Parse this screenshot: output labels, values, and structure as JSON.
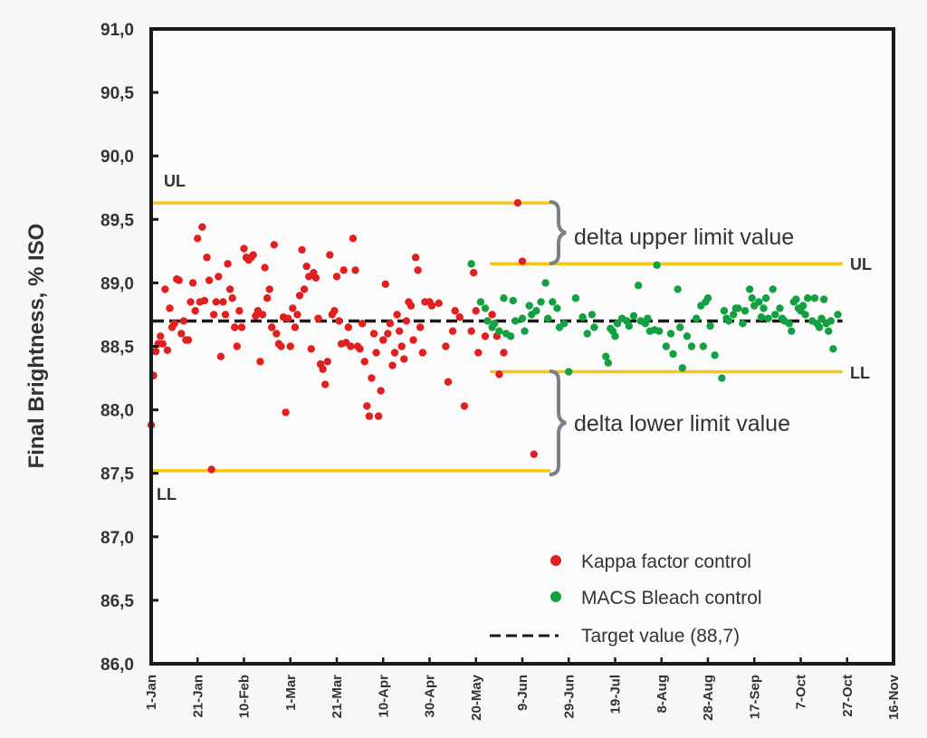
{
  "chart_data": {
    "type": "scatter",
    "title": "",
    "ylabel": "Final Brightness, % ISO",
    "xlabel": "",
    "ylim": [
      86.0,
      91.0
    ],
    "xlim_days": [
      0,
      320
    ],
    "y_ticks": [
      "86,0",
      "86,5",
      "87,0",
      "87,5",
      "88,0",
      "88,5",
      "89,0",
      "89,5",
      "90,0",
      "90,5",
      "91,0"
    ],
    "y_tick_values": [
      86.0,
      86.5,
      87.0,
      87.5,
      88.0,
      88.5,
      89.0,
      89.5,
      90.0,
      90.5,
      91.0
    ],
    "x_ticks": [
      "1-Jan",
      "21-Jan",
      "10-Feb",
      "1-Mar",
      "21-Mar",
      "10-Apr",
      "30-Apr",
      "20-May",
      "9-Jun",
      "29-Jun",
      "19-Jul",
      "8-Aug",
      "28-Aug",
      "17-Sep",
      "7-Oct",
      "27-Oct",
      "16-Nov"
    ],
    "x_tick_days": [
      0,
      20,
      40,
      60,
      80,
      100,
      120,
      140,
      160,
      180,
      200,
      220,
      240,
      260,
      280,
      300,
      320
    ],
    "grid": false,
    "legend_position": "bottom-right",
    "target": {
      "label": "Target value  (88,7)",
      "value": 88.7,
      "day_range": [
        0,
        298
      ]
    },
    "limits": [
      {
        "name": "UL",
        "series": "Kappa factor control",
        "value": 89.63,
        "day_range": [
          0,
          172
        ],
        "label_side": "left"
      },
      {
        "name": "LL",
        "series": "Kappa factor control",
        "value": 87.52,
        "day_range": [
          0,
          172
        ],
        "label_side": "left"
      },
      {
        "name": "UL",
        "series": "MACS Bleach control",
        "value": 89.15,
        "day_range": [
          146,
          298
        ],
        "label_side": "right"
      },
      {
        "name": "LL",
        "series": "MACS Bleach control",
        "value": 88.3,
        "day_range": [
          146,
          298
        ],
        "label_side": "right"
      }
    ],
    "annotations": [
      {
        "text": "delta upper limit value",
        "between": [
          89.15,
          89.63
        ]
      },
      {
        "text": "delta lower limit value",
        "between": [
          87.52,
          88.3
        ]
      }
    ],
    "series": [
      {
        "name": "Kappa factor control",
        "color": "#e02020",
        "points": [
          [
            0,
            87.88
          ],
          [
            1,
            88.27
          ],
          [
            2,
            88.46
          ],
          [
            3,
            88.52
          ],
          [
            4,
            88.58
          ],
          [
            5,
            88.52
          ],
          [
            6,
            88.95
          ],
          [
            7,
            88.47
          ],
          [
            8,
            88.8
          ],
          [
            9,
            88.65
          ],
          [
            10,
            88.68
          ],
          [
            11,
            89.03
          ],
          [
            12,
            89.02
          ],
          [
            13,
            88.6
          ],
          [
            14,
            88.7
          ],
          [
            15,
            88.55
          ],
          [
            16,
            88.55
          ],
          [
            17,
            88.85
          ],
          [
            18,
            89.0
          ],
          [
            19,
            88.78
          ],
          [
            20,
            89.35
          ],
          [
            21,
            88.85
          ],
          [
            22,
            89.44
          ],
          [
            23,
            88.86
          ],
          [
            24,
            89.2
          ],
          [
            25,
            89.02
          ],
          [
            26,
            87.53
          ],
          [
            27,
            88.75
          ],
          [
            28,
            88.85
          ],
          [
            29,
            89.05
          ],
          [
            30,
            88.42
          ],
          [
            31,
            88.85
          ],
          [
            32,
            88.75
          ],
          [
            33,
            89.15
          ],
          [
            34,
            88.95
          ],
          [
            35,
            88.88
          ],
          [
            36,
            88.65
          ],
          [
            37,
            88.5
          ],
          [
            38,
            88.78
          ],
          [
            39,
            88.65
          ],
          [
            40,
            89.27
          ],
          [
            41,
            89.2
          ],
          [
            42,
            89.18
          ],
          [
            43,
            89.2
          ],
          [
            44,
            89.22
          ],
          [
            45,
            88.74
          ],
          [
            46,
            88.78
          ],
          [
            47,
            88.38
          ],
          [
            48,
            88.75
          ],
          [
            49,
            89.12
          ],
          [
            50,
            88.88
          ],
          [
            51,
            88.95
          ],
          [
            52,
            88.65
          ],
          [
            53,
            89.3
          ],
          [
            54,
            88.6
          ],
          [
            55,
            88.52
          ],
          [
            56,
            88.5
          ],
          [
            57,
            88.73
          ],
          [
            58,
            87.98
          ],
          [
            59,
            88.72
          ],
          [
            60,
            88.5
          ],
          [
            61,
            88.8
          ],
          [
            62,
            88.65
          ],
          [
            63,
            88.75
          ],
          [
            64,
            88.9
          ],
          [
            65,
            89.26
          ],
          [
            66,
            88.95
          ],
          [
            67,
            89.13
          ],
          [
            68,
            89.05
          ],
          [
            69,
            88.48
          ],
          [
            70,
            89.08
          ],
          [
            71,
            89.04
          ],
          [
            72,
            88.72
          ],
          [
            73,
            88.36
          ],
          [
            74,
            88.32
          ],
          [
            75,
            88.2
          ],
          [
            76,
            88.38
          ],
          [
            77,
            89.22
          ],
          [
            78,
            88.75
          ],
          [
            79,
            88.78
          ],
          [
            80,
            89.05
          ],
          [
            81,
            88.7
          ],
          [
            82,
            88.52
          ],
          [
            83,
            89.1
          ],
          [
            84,
            88.53
          ],
          [
            85,
            88.65
          ],
          [
            86,
            88.5
          ],
          [
            87,
            89.35
          ],
          [
            88,
            89.1
          ],
          [
            89,
            88.5
          ],
          [
            90,
            88.48
          ],
          [
            91,
            88.68
          ],
          [
            92,
            88.38
          ],
          [
            93,
            88.03
          ],
          [
            94,
            87.95
          ],
          [
            95,
            88.25
          ],
          [
            96,
            88.6
          ],
          [
            97,
            88.45
          ],
          [
            98,
            87.95
          ],
          [
            99,
            88.15
          ],
          [
            100,
            88.55
          ],
          [
            101,
            88.99
          ],
          [
            102,
            88.6
          ],
          [
            103,
            88.68
          ],
          [
            104,
            88.35
          ],
          [
            105,
            88.45
          ],
          [
            106,
            88.75
          ],
          [
            107,
            88.62
          ],
          [
            108,
            88.5
          ],
          [
            109,
            88.4
          ],
          [
            110,
            88.7
          ],
          [
            111,
            88.85
          ],
          [
            112,
            88.82
          ],
          [
            113,
            88.55
          ],
          [
            114,
            89.2
          ],
          [
            115,
            89.1
          ],
          [
            116,
            88.65
          ],
          [
            117,
            88.45
          ],
          [
            118,
            88.85
          ],
          [
            120,
            88.85
          ],
          [
            121,
            88.82
          ],
          [
            124,
            88.84
          ],
          [
            127,
            88.5
          ],
          [
            128,
            88.22
          ],
          [
            130,
            88.62
          ],
          [
            131,
            88.78
          ],
          [
            133,
            88.73
          ],
          [
            135,
            88.03
          ],
          [
            138,
            88.62
          ],
          [
            139,
            89.08
          ],
          [
            140,
            88.78
          ],
          [
            141,
            88.45
          ],
          [
            144,
            88.58
          ],
          [
            147,
            88.75
          ],
          [
            149,
            88.58
          ],
          [
            150,
            88.28
          ],
          [
            152,
            88.45
          ],
          [
            158,
            89.63
          ],
          [
            160,
            89.17
          ],
          [
            165,
            87.65
          ]
        ]
      },
      {
        "name": "MACS Bleach control",
        "color": "#12a040",
        "points": [
          [
            138,
            89.15
          ],
          [
            142,
            88.85
          ],
          [
            144,
            88.8
          ],
          [
            145,
            88.7
          ],
          [
            147,
            88.65
          ],
          [
            148,
            88.68
          ],
          [
            150,
            88.62
          ],
          [
            152,
            88.88
          ],
          [
            153,
            88.6
          ],
          [
            155,
            88.58
          ],
          [
            156,
            88.86
          ],
          [
            157,
            88.7
          ],
          [
            160,
            88.72
          ],
          [
            161,
            88.62
          ],
          [
            163,
            88.82
          ],
          [
            164,
            88.75
          ],
          [
            166,
            88.78
          ],
          [
            168,
            88.85
          ],
          [
            170,
            89.0
          ],
          [
            171,
            88.72
          ],
          [
            173,
            88.85
          ],
          [
            175,
            88.8
          ],
          [
            176,
            88.65
          ],
          [
            178,
            88.68
          ],
          [
            180,
            88.3
          ],
          [
            183,
            88.88
          ],
          [
            186,
            88.73
          ],
          [
            188,
            88.6
          ],
          [
            190,
            88.75
          ],
          [
            191,
            88.65
          ],
          [
            196,
            88.42
          ],
          [
            197,
            88.37
          ],
          [
            198,
            88.64
          ],
          [
            199,
            88.62
          ],
          [
            200,
            88.58
          ],
          [
            201,
            88.68
          ],
          [
            203,
            88.72
          ],
          [
            205,
            88.7
          ],
          [
            206,
            88.66
          ],
          [
            208,
            88.74
          ],
          [
            210,
            88.98
          ],
          [
            211,
            88.7
          ],
          [
            213,
            88.68
          ],
          [
            214,
            88.72
          ],
          [
            215,
            88.62
          ],
          [
            217,
            88.63
          ],
          [
            218,
            89.14
          ],
          [
            219,
            88.62
          ],
          [
            222,
            88.5
          ],
          [
            224,
            88.6
          ],
          [
            225,
            88.44
          ],
          [
            227,
            88.95
          ],
          [
            228,
            88.65
          ],
          [
            229,
            88.33
          ],
          [
            231,
            88.58
          ],
          [
            233,
            88.5
          ],
          [
            235,
            88.72
          ],
          [
            237,
            88.82
          ],
          [
            238,
            88.5
          ],
          [
            239,
            88.85
          ],
          [
            240,
            88.88
          ],
          [
            241,
            88.66
          ],
          [
            243,
            88.43
          ],
          [
            246,
            88.25
          ],
          [
            247,
            88.78
          ],
          [
            248,
            88.72
          ],
          [
            249,
            88.7
          ],
          [
            251,
            88.75
          ],
          [
            252,
            88.8
          ],
          [
            253,
            88.8
          ],
          [
            255,
            88.68
          ],
          [
            256,
            88.78
          ],
          [
            258,
            88.95
          ],
          [
            259,
            88.88
          ],
          [
            260,
            88.82
          ],
          [
            262,
            88.85
          ],
          [
            263,
            88.73
          ],
          [
            264,
            88.8
          ],
          [
            265,
            88.88
          ],
          [
            266,
            88.72
          ],
          [
            268,
            88.95
          ],
          [
            269,
            88.75
          ],
          [
            271,
            88.8
          ],
          [
            272,
            88.72
          ],
          [
            273,
            88.7
          ],
          [
            275,
            88.68
          ],
          [
            276,
            88.62
          ],
          [
            277,
            88.85
          ],
          [
            278,
            88.87
          ],
          [
            279,
            88.8
          ],
          [
            280,
            88.78
          ],
          [
            281,
            88.82
          ],
          [
            282,
            88.75
          ],
          [
            283,
            88.88
          ],
          [
            285,
            88.7
          ],
          [
            286,
            88.88
          ],
          [
            287,
            88.68
          ],
          [
            288,
            88.65
          ],
          [
            289,
            88.72
          ],
          [
            290,
            88.87
          ],
          [
            291,
            88.68
          ],
          [
            292,
            88.62
          ],
          [
            293,
            88.7
          ],
          [
            294,
            88.48
          ],
          [
            296,
            88.75
          ]
        ]
      }
    ],
    "legend": [
      {
        "label": "Kappa factor control",
        "marker": "dot",
        "color": "#e02020"
      },
      {
        "label": "MACS Bleach control",
        "marker": "dot",
        "color": "#12a040"
      },
      {
        "label": "Target value  (88,7)",
        "marker": "dashed-line",
        "color": "#1a1a1a"
      }
    ],
    "colors": {
      "limit_line": "#f5c518",
      "brace": "#7a8088",
      "axis": "#1a1a1a"
    }
  }
}
